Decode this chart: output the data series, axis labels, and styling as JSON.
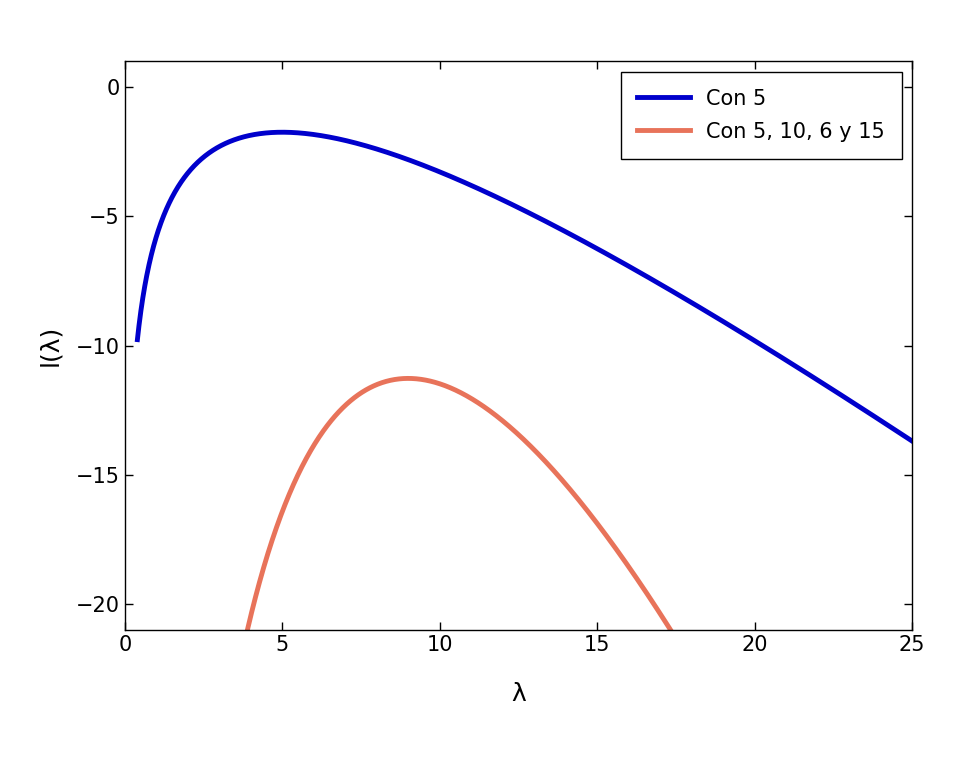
{
  "title": "",
  "xlabel": "λ",
  "ylabel": "l(λ)",
  "xlim": [
    0,
    25
  ],
  "ylim": [
    -21,
    1
  ],
  "xticks": [
    0,
    5,
    10,
    15,
    20,
    25
  ],
  "yticks": [
    0,
    -5,
    -10,
    -15,
    -20
  ],
  "curve1_label": "Con 5",
  "curve1_color": "#0000CC",
  "curve1_obs": [
    5
  ],
  "curve2_label": "Con 5, 10, 6 y 15",
  "curve2_color": "#E8735A",
  "curve2_obs": [
    5,
    10,
    6,
    15
  ],
  "lambda_min": 0.4,
  "lambda_max": 25.0,
  "n_points": 2000,
  "linewidth": 3.5,
  "legend_fontsize": 15,
  "axis_label_fontsize": 18,
  "tick_fontsize": 15,
  "background_color": "#FFFFFF"
}
